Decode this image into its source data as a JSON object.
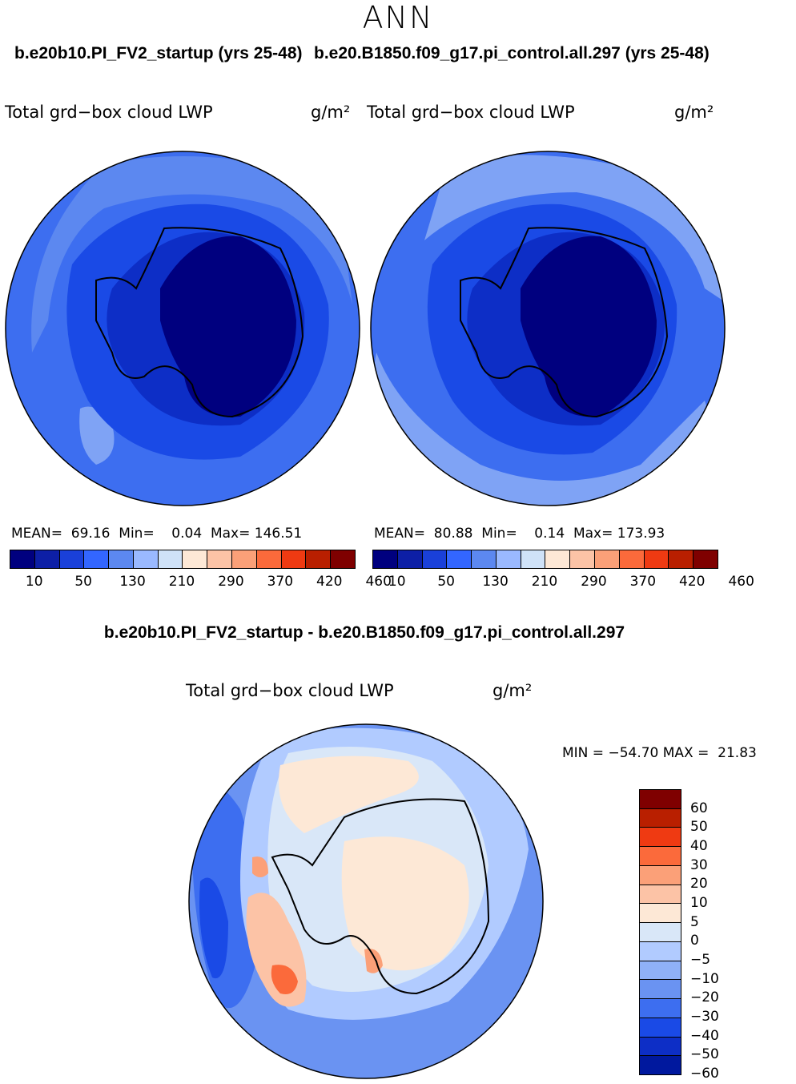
{
  "title": "ANN",
  "panels": [
    {
      "case": "b.e20b10.PI_FV2_startup (yrs 25-48)",
      "variable": "Total grd−box cloud LWP",
      "units": "g/m²",
      "stats": "MEAN=  69.16  Min=    0.04  Max= 146.51"
    },
    {
      "case": "b.e20.B1850.f09_g17.pi_control.all.297 (yrs 25-48)",
      "variable": "Total grd−box cloud LWP",
      "units": "g/m²",
      "stats": "MEAN=  80.88  Min=    0.14  Max= 173.93"
    }
  ],
  "colorbar": {
    "colors": [
      "#00007f",
      "#0d1fa6",
      "#1a40d9",
      "#3366ff",
      "#5c88f0",
      "#9ab9ff",
      "#cfe2f8",
      "#fde8d6",
      "#fcc3a6",
      "#fba078",
      "#fb6a3b",
      "#ef3a12",
      "#b91f00",
      "#7f0000"
    ],
    "labels": [
      "10",
      "50",
      "130",
      "210",
      "290",
      "370",
      "420",
      "460"
    ]
  },
  "difference": {
    "title": "b.e20b10.PI_FV2_startup - b.e20.B1850.f09_g17.pi_control.all.297",
    "variable": "Total grd−box cloud LWP",
    "units": "g/m²",
    "stats": "MIN = −54.70 MAX =  21.83",
    "colorbar": {
      "colors": [
        "#7f0000",
        "#b91f00",
        "#ef3a12",
        "#fb6a3b",
        "#fba078",
        "#fcc3a6",
        "#fde8d6",
        "#d9e7f8",
        "#b1cbff",
        "#8fb1f7",
        "#6a93f2",
        "#3d6ef0",
        "#1a4ae6",
        "#0d2ec6",
        "#00189e"
      ],
      "labels": [
        "60",
        "50",
        "40",
        "30",
        "20",
        "10",
        "5",
        "0",
        "−5",
        "−10",
        "−20",
        "−30",
        "−40",
        "−50",
        "−60"
      ]
    }
  }
}
